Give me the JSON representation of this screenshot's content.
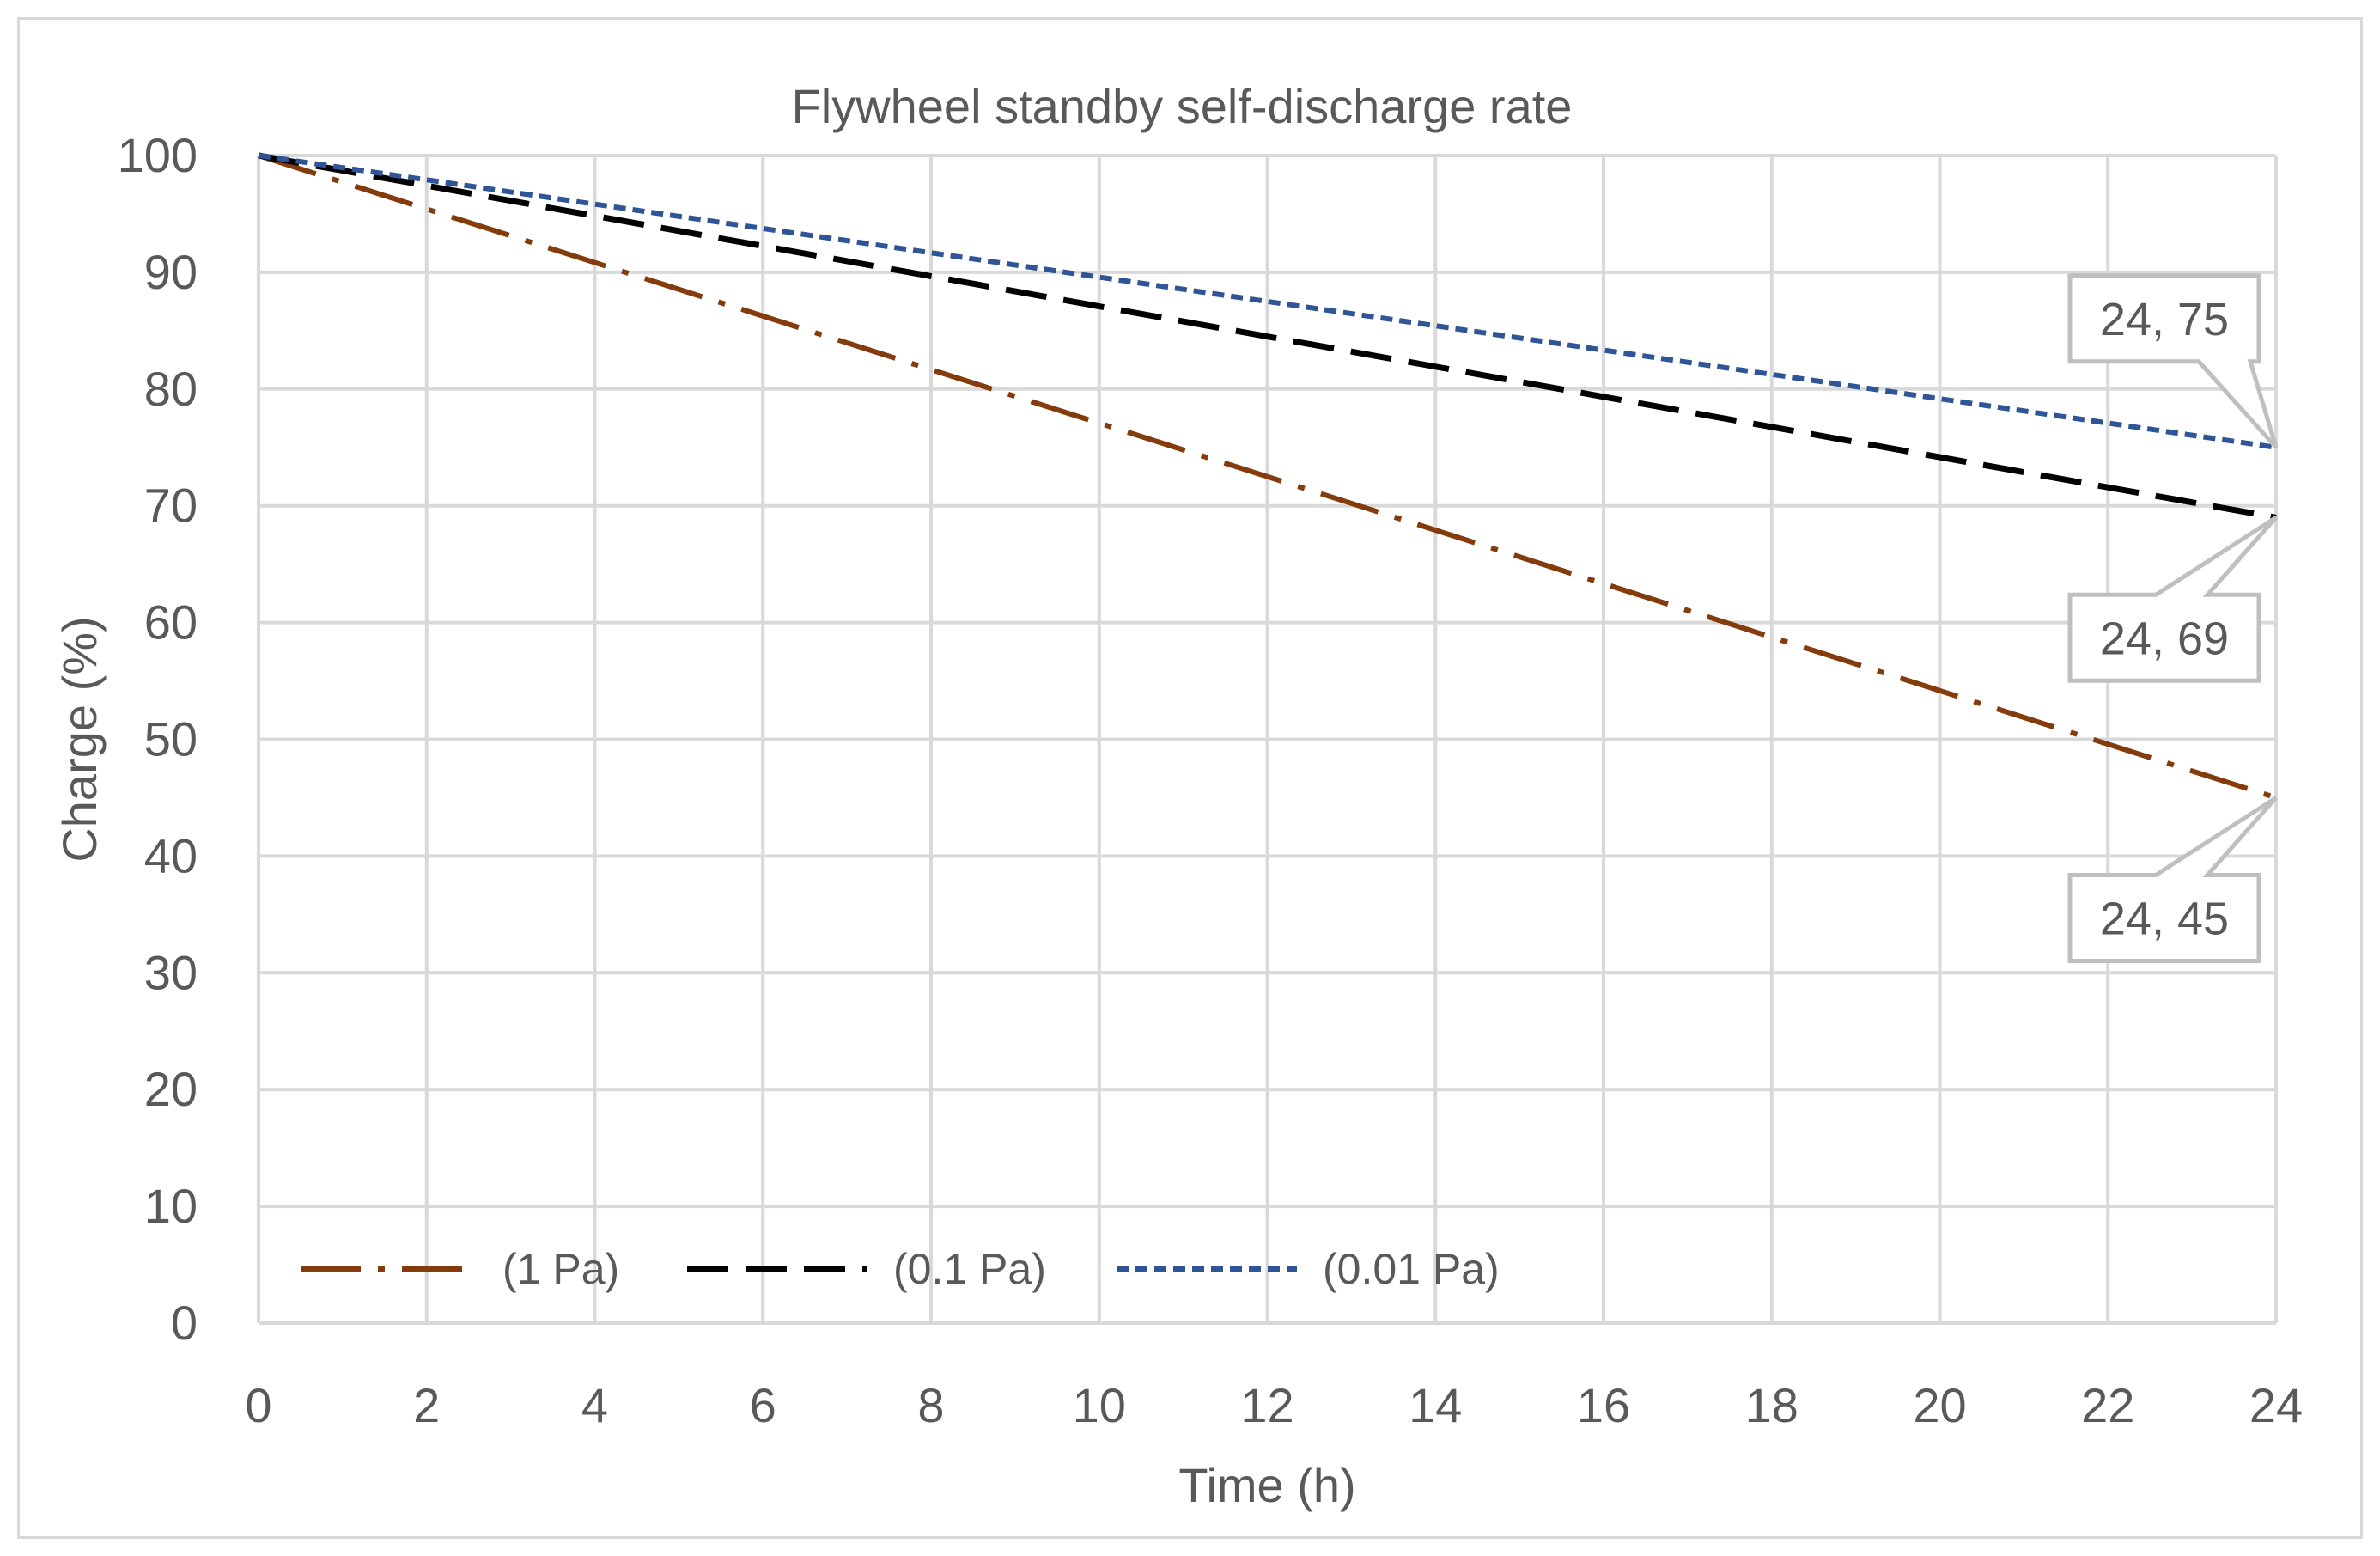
{
  "chart_data": {
    "type": "line",
    "title": "Flywheel standby self-discharge rate",
    "xlabel": "Time (h)",
    "ylabel": "Charge (%)",
    "xlim": [
      0,
      24
    ],
    "ylim": [
      0,
      100
    ],
    "xticks": [
      "0",
      "2",
      "4",
      "6",
      "8",
      "10",
      "12",
      "14",
      "16",
      "18",
      "20",
      "22",
      "24"
    ],
    "yticks": [
      "0",
      "10",
      "20",
      "30",
      "40",
      "50",
      "60",
      "70",
      "80",
      "90",
      "100"
    ],
    "grid": true,
    "legend_position": "bottom-left inside",
    "series": [
      {
        "name": "(1 Pa)",
        "x": [
          0,
          24
        ],
        "y": [
          100,
          45
        ],
        "color": "#843c0c",
        "style": "dash-dot"
      },
      {
        "name": "(0.1 Pa)",
        "x": [
          0,
          24
        ],
        "y": [
          100,
          69
        ],
        "color": "#000000",
        "style": "long-dash"
      },
      {
        "name": "(0.01 Pa)",
        "x": [
          0,
          24
        ],
        "y": [
          100,
          75
        ],
        "color": "#2f5597",
        "style": "dotted"
      }
    ],
    "annotations": [
      {
        "text": "24, 75",
        "x": 24,
        "y": 75,
        "side": "above"
      },
      {
        "text": "24, 69",
        "x": 24,
        "y": 69,
        "side": "below"
      },
      {
        "text": "24, 45",
        "x": 24,
        "y": 45,
        "side": "below"
      }
    ]
  }
}
